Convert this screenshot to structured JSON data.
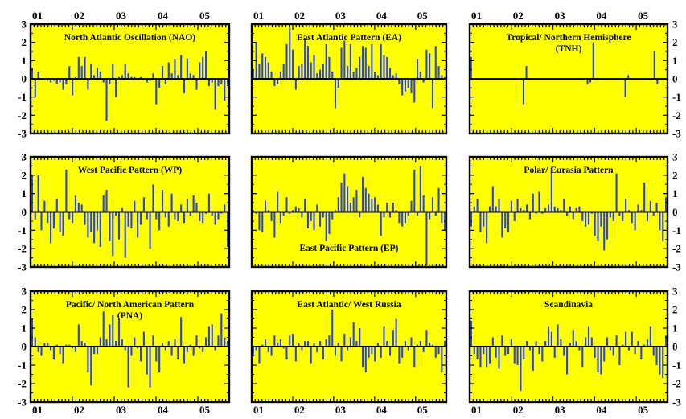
{
  "figure": {
    "colors": {
      "panel_bg": "#ffff00",
      "bar": "#2a44e6",
      "axis": "#000000"
    },
    "x_tick_labels": [
      "01",
      "02",
      "03",
      "04",
      "05"
    ],
    "y_tick_labels": [
      "3",
      "2",
      "1",
      "0",
      "-1",
      "-2",
      "-3"
    ]
  },
  "chart_data": [
    {
      "type": "bar",
      "title_lines": [
        "North Atlantic Oscillation (NAO)"
      ],
      "title_pos": "top",
      "ylim": [
        -3,
        3
      ],
      "xlim": [
        2001.0,
        2005.75
      ],
      "values": [
        0.6,
        -1.0,
        0.4,
        0.0,
        0.0,
        -0.1,
        -0.2,
        -0.1,
        -0.3,
        -0.2,
        -0.6,
        -0.3,
        0.7,
        -0.9,
        0.1,
        1.2,
        0.7,
        1.2,
        -0.6,
        0.8,
        0.2,
        0.6,
        0.4,
        -0.2,
        -2.3,
        -0.3,
        0.8,
        -1.0,
        0.1,
        0.2,
        0.8,
        0.3,
        0.1,
        0.1,
        0.0,
        0.1,
        0.0,
        -0.2,
        -0.1,
        0.3,
        -1.4,
        -0.5,
        0.7,
        -0.3,
        0.9,
        0.3,
        1.1,
        0.2,
        1.3,
        -0.8,
        1.1,
        0.3,
        0.2,
        -0.6,
        0.9,
        1.2,
        1.5,
        -0.4,
        -0.2,
        -1.7,
        -0.4,
        -0.3,
        -1.2,
        -0.4
      ]
    },
    {
      "type": "bar",
      "title_lines": [
        "East Atlantic Pattern (EA)"
      ],
      "title_pos": "top",
      "ylim": [
        -3,
        3
      ],
      "xlim": [
        2001.0,
        2005.75
      ],
      "values": [
        0.5,
        2.0,
        0.8,
        1.4,
        1.2,
        0.9,
        0.4,
        -0.4,
        -0.3,
        0.4,
        0.8,
        1.9,
        2.8,
        1.6,
        -0.6,
        0.7,
        0.8,
        2.2,
        1.8,
        0.9,
        1.3,
        0.3,
        0.5,
        0.8,
        1.9,
        1.2,
        0.4,
        -1.6,
        -0.5,
        1.7,
        2.1,
        0.7,
        1.9,
        0.4,
        0.6,
        1.2,
        1.8,
        1.7,
        0.7,
        1.9,
        0.4,
        0.2,
        1.9,
        1.3,
        1.2,
        0.6,
        0.2,
        0.3,
        -0.3,
        -0.9,
        -0.7,
        -0.5,
        -0.8,
        -1.3,
        1.1,
        0.4,
        -0.2,
        1.6,
        1.4,
        -1.6,
        1.8,
        0.7,
        0.2,
        0.1
      ]
    },
    {
      "type": "bar",
      "title_lines": [
        "Tropical/ Northern Hemisphere",
        "(TNH)"
      ],
      "title_pos": "top",
      "ylim": [
        -3,
        3
      ],
      "xlim": [
        2001.0,
        2005.75
      ],
      "values": [
        1.2,
        0,
        0,
        0,
        0,
        0,
        0,
        0,
        0,
        0,
        0,
        0,
        0,
        0,
        0,
        0,
        0,
        0,
        -1.4,
        0.7,
        0,
        0,
        0,
        0,
        0,
        0,
        0,
        0,
        0,
        0,
        0,
        0,
        0,
        0,
        0,
        0,
        0,
        0,
        0,
        0,
        -0.3,
        -0.2,
        2.0,
        0,
        0,
        0,
        0,
        0,
        0,
        0,
        0,
        0,
        0,
        -1.0,
        0.2,
        0,
        0,
        0,
        0,
        0,
        0,
        0,
        0,
        1.5,
        -0.3,
        0,
        0,
        0
      ]
    },
    {
      "type": "bar",
      "title_lines": [
        "West Pacific Pattern (WP)"
      ],
      "title_pos": "top",
      "ylim": [
        -3,
        3
      ],
      "xlim": [
        2001.0,
        2005.75
      ],
      "values": [
        2.0,
        -0.4,
        2.0,
        -1.0,
        0.6,
        -0.6,
        -1.7,
        -0.9,
        0.7,
        -1.1,
        -1.3,
        2.3,
        -0.4,
        -0.6,
        0.9,
        0.5,
        0.4,
        -0.7,
        -1.4,
        -1.1,
        -1.7,
        -1.0,
        -1.9,
        0.9,
        1.2,
        -1.6,
        -2.4,
        -0.2,
        -1.5,
        0.2,
        -2.5,
        -0.8,
        -0.9,
        0.6,
        -1.4,
        -0.7,
        0.8,
        -0.4,
        -2.0,
        1.5,
        -0.4,
        -1.0,
        1.2,
        -0.3,
        -0.8,
        1.0,
        -0.4,
        -0.5,
        0.4,
        -0.6,
        0.7,
        -0.2,
        0.9,
        0.5,
        -0.5,
        -0.6,
        -0.1,
        1.0,
        -0.2,
        -0.7,
        -0.4,
        -0.1,
        0.4,
        -1.9
      ]
    },
    {
      "type": "bar",
      "title_lines": [
        "East Pacific Pattern (EP)"
      ],
      "title_pos": "bottom",
      "ylim": [
        -3,
        3
      ],
      "xlim": [
        2001.0,
        2005.75
      ],
      "values": [
        0.1,
        -0.1,
        -1.0,
        -1.1,
        0.6,
        0.1,
        -0.5,
        -1.4,
        1.1,
        -0.6,
        -0.2,
        0.8,
        -0.1,
        0.1,
        0.3,
        0.2,
        -0.3,
        0.7,
        -0.9,
        -0.5,
        -1.0,
        0.4,
        -0.8,
        -0.3,
        -1.6,
        -1.2,
        -0.4,
        0.1,
        0.8,
        1.6,
        2.1,
        1.4,
        0.5,
        0.8,
        1.2,
        -0.3,
        1.9,
        1.3,
        1.0,
        0.7,
        0.8,
        0.4,
        -1.3,
        -0.3,
        0.5,
        -0.3,
        0.5,
        0.1,
        -0.6,
        -0.8,
        -0.6,
        -0.2,
        0.6,
        2.3,
        -0.2,
        2.5,
        0.9,
        -2.9,
        -0.4,
        0.8,
        -0.2,
        1.3,
        -0.6,
        -1.0
      ]
    },
    {
      "type": "bar",
      "title_lines": [
        "Polar/ Eurasia Pattern"
      ],
      "title_pos": "top",
      "ylim": [
        -3,
        3
      ],
      "xlim": [
        2001.0,
        2005.75
      ],
      "values": [
        -0.8,
        0.3,
        0.7,
        -1.1,
        -0.8,
        -1.7,
        0.3,
        1.4,
        0.3,
        0.7,
        -1.4,
        -0.9,
        -1.1,
        0.6,
        -0.5,
        0.7,
        0.2,
        0.1,
        0.4,
        -0.4,
        1.0,
        -0.1,
        1.1,
        -0.1,
        0.2,
        0.4,
        2.4,
        0.3,
        0.2,
        0.1,
        0.7,
        -0.2,
        0.3,
        -0.4,
        0.2,
        0.3,
        -0.5,
        -0.8,
        -0.7,
        -0.1,
        -1.3,
        -1.6,
        -0.8,
        -2.1,
        -1.5,
        -0.3,
        -0.5,
        2.1,
        -0.2,
        -0.5,
        0.7,
        0.1,
        -0.6,
        -1.0,
        0.4,
        0.1,
        1.6,
        -0.5,
        0.6,
        -0.2,
        0.5,
        -1.0,
        -1.6,
        0.8
      ]
    },
    {
      "type": "bar",
      "title_lines": [
        "Pacific/ North American Pattern",
        "(PNA)"
      ],
      "title_pos": "top",
      "ylim": [
        -3,
        3
      ],
      "xlim": [
        2001.0,
        2005.75
      ],
      "values": [
        1.5,
        0.5,
        -0.3,
        -0.5,
        0.2,
        0.2,
        -0.2,
        -0.7,
        0.1,
        -0.4,
        -0.9,
        0.1,
        0.1,
        -0.1,
        -0.3,
        1.2,
        0.3,
        0.2,
        -1.4,
        -2.1,
        -0.4,
        -0.4,
        0.5,
        1.9,
        0.4,
        1.2,
        1.7,
        0.3,
        1.5,
        0.4,
        -0.2,
        -2.2,
        -0.5,
        0.5,
        -0.1,
        -0.8,
        0.8,
        -1.5,
        -2.2,
        0.6,
        -0.8,
        -1.4,
        0.2,
        -0.2,
        0.3,
        -0.5,
        0.4,
        -0.7,
        1.6,
        -0.9,
        -0.3,
        0.1,
        -0.5,
        0.6,
        -0.1,
        -0.3,
        0.5,
        1.1,
        1.2,
        -0.2,
        0.6,
        1.8,
        0.5,
        0.3
      ]
    },
    {
      "type": "bar",
      "title_lines": [
        "East Atlantic/ West Russia"
      ],
      "title_pos": "top",
      "ylim": [
        -3,
        3
      ],
      "xlim": [
        2001.0,
        2005.75
      ],
      "values": [
        -0.5,
        -0.2,
        -0.9,
        0.1,
        0.4,
        -0.3,
        -0.5,
        0.6,
        0.2,
        0.4,
        -0.1,
        -0.7,
        0.6,
        0.7,
        -0.8,
        0.2,
        -0.2,
        0.3,
        0.3,
        -0.9,
        0.2,
        -0.3,
        0.3,
        -0.7,
        0.4,
        0.6,
        2.0,
        -0.5,
        0.2,
        -0.8,
        0.7,
        -0.2,
        0.5,
        1.3,
        0.3,
        1.0,
        -1.1,
        -1.4,
        -0.6,
        -0.4,
        -0.8,
        0.2,
        -0.6,
        1.1,
        0.3,
        -0.5,
        0.9,
        1.5,
        -0.9,
        -0.6,
        0.3,
        -0.2,
        0.5,
        -1.1,
        0.1,
        0.3,
        -0.3,
        0.9,
        0.2,
        0.1,
        -0.6,
        -0.4,
        -1.4,
        0.3
      ]
    },
    {
      "type": "bar",
      "title_lines": [
        "Scandinavia"
      ],
      "title_pos": "top",
      "ylim": [
        -3,
        3
      ],
      "xlim": [
        2001.0,
        2005.75
      ],
      "values": [
        1.4,
        -0.4,
        -0.7,
        -1.1,
        -0.4,
        -1.1,
        -0.9,
        0.5,
        -0.6,
        -1.2,
        0.6,
        -0.5,
        -0.4,
        0.4,
        -0.9,
        -1.0,
        -2.4,
        -0.7,
        0.3,
        -0.2,
        -1.3,
        0.3,
        -0.4,
        -0.8,
        0.3,
        1.1,
        0.8,
        -0.6,
        1.2,
        0.4,
        -0.5,
        -1.5,
        0.2,
        0.9,
        0.3,
        -0.2,
        -1.1,
        0.5,
        1.1,
        0.5,
        -0.6,
        -1.4,
        -1.5,
        -0.8,
        0.5,
        -0.2,
        -0.5,
        0.6,
        -1.0,
        0.1,
        0.8,
        -0.2,
        0.8,
        -0.4,
        0.3,
        -0.7,
        0.1,
        0.4,
        1.1,
        -0.5,
        -1.0,
        -1.5,
        -1.7,
        0.6
      ]
    }
  ]
}
